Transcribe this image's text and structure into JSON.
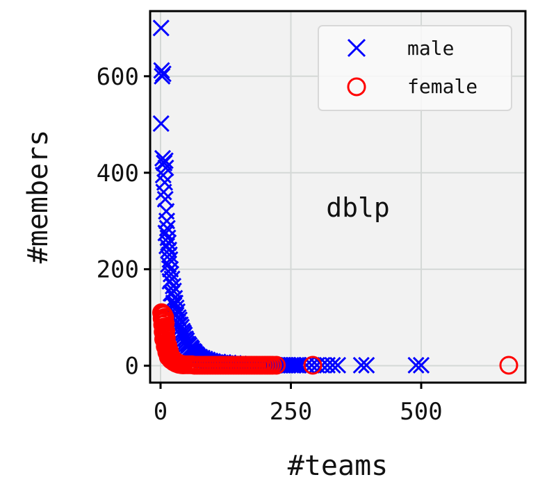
{
  "chart_data": {
    "type": "scatter",
    "xlabel": "#teams",
    "ylabel": "#members",
    "annotation": "dblp",
    "xlim": [
      -20,
      700
    ],
    "ylim": [
      -35,
      735
    ],
    "xticks": [
      0,
      250,
      500
    ],
    "xtick_labels": [
      "0",
      "250",
      "500"
    ],
    "yticks": [
      0,
      200,
      400,
      600
    ],
    "ytick_labels": [
      "0",
      "200",
      "400",
      "600"
    ],
    "grid": true,
    "legend": {
      "position": "top-right",
      "entries": [
        {
          "label": "male",
          "marker": "x",
          "color": "#0000ff"
        },
        {
          "label": "female",
          "marker": "o",
          "color": "#ff0000"
        }
      ]
    },
    "colors": {
      "male": "#0000ff",
      "female": "#ff0000",
      "plot_background": "#f2f2f2",
      "grid": "#d4d8d6"
    },
    "series": [
      {
        "name": "male",
        "marker": "x",
        "color": "#0000ff",
        "points": [
          [
            1,
            700
          ],
          [
            2,
            612
          ],
          [
            3,
            600
          ],
          [
            5,
            605
          ],
          [
            1,
            502
          ],
          [
            4,
            430
          ],
          [
            7,
            420
          ],
          [
            9,
            425
          ],
          [
            10,
            410
          ],
          [
            5,
            395
          ],
          [
            8,
            380
          ],
          [
            6,
            360
          ],
          [
            9,
            345
          ],
          [
            11,
            320
          ],
          [
            12,
            300
          ],
          [
            13,
            285
          ],
          [
            10,
            275
          ],
          [
            14,
            265
          ],
          [
            15,
            255
          ],
          [
            12,
            248
          ],
          [
            16,
            240
          ],
          [
            17,
            230
          ],
          [
            18,
            220
          ],
          [
            15,
            210
          ],
          [
            19,
            200
          ],
          [
            20,
            190
          ],
          [
            22,
            180
          ],
          [
            18,
            175
          ],
          [
            24,
            165
          ],
          [
            25,
            155
          ],
          [
            20,
            150
          ],
          [
            27,
            140
          ],
          [
            28,
            130
          ],
          [
            26,
            125
          ],
          [
            30,
            120
          ],
          [
            32,
            112
          ],
          [
            29,
            108
          ],
          [
            34,
            100
          ],
          [
            36,
            95
          ],
          [
            33,
            90
          ],
          [
            38,
            85
          ],
          [
            40,
            80
          ],
          [
            37,
            76
          ],
          [
            42,
            72
          ],
          [
            44,
            68
          ],
          [
            46,
            64
          ],
          [
            43,
            60
          ],
          [
            48,
            56
          ],
          [
            50,
            52
          ],
          [
            47,
            48
          ],
          [
            53,
            45
          ],
          [
            55,
            42
          ],
          [
            52,
            40
          ],
          [
            58,
            38
          ],
          [
            60,
            35
          ],
          [
            57,
            32
          ],
          [
            63,
            30
          ],
          [
            65,
            28
          ],
          [
            62,
            26
          ],
          [
            68,
            24
          ],
          [
            70,
            22
          ],
          [
            67,
            20
          ],
          [
            73,
            18
          ],
          [
            75,
            16
          ],
          [
            72,
            15
          ],
          [
            78,
            14
          ],
          [
            80,
            13
          ],
          [
            85,
            12
          ],
          [
            82,
            11
          ],
          [
            90,
            10
          ],
          [
            95,
            9
          ],
          [
            92,
            8
          ],
          [
            100,
            8
          ],
          [
            105,
            7
          ],
          [
            110,
            6
          ],
          [
            115,
            6
          ],
          [
            120,
            5
          ],
          [
            125,
            5
          ],
          [
            130,
            4
          ],
          [
            135,
            4
          ],
          [
            140,
            3
          ],
          [
            145,
            3
          ],
          [
            150,
            3
          ],
          [
            155,
            2
          ],
          [
            160,
            2
          ],
          [
            165,
            2
          ],
          [
            170,
            2
          ],
          [
            175,
            2
          ],
          [
            180,
            2
          ],
          [
            185,
            2
          ],
          [
            190,
            1
          ],
          [
            195,
            1
          ],
          [
            200,
            1
          ],
          [
            205,
            1
          ],
          [
            210,
            1
          ],
          [
            215,
            1
          ],
          [
            220,
            1
          ],
          [
            225,
            1
          ],
          [
            230,
            1
          ],
          [
            235,
            1
          ],
          [
            240,
            1
          ],
          [
            245,
            1
          ],
          [
            250,
            1
          ],
          [
            255,
            1
          ],
          [
            260,
            1
          ],
          [
            265,
            1
          ],
          [
            270,
            1
          ],
          [
            280,
            1
          ],
          [
            290,
            1
          ],
          [
            300,
            1
          ],
          [
            310,
            1
          ],
          [
            320,
            1
          ],
          [
            330,
            1
          ],
          [
            340,
            1
          ],
          [
            385,
            1
          ],
          [
            395,
            1
          ],
          [
            490,
            1
          ],
          [
            500,
            1
          ],
          [
            22,
            150
          ],
          [
            25,
            130
          ],
          [
            30,
            105
          ],
          [
            35,
            85
          ],
          [
            40,
            70
          ],
          [
            45,
            55
          ],
          [
            50,
            45
          ],
          [
            55,
            35
          ],
          [
            60,
            30
          ],
          [
            65,
            25
          ],
          [
            70,
            20
          ],
          [
            75,
            18
          ],
          [
            80,
            16
          ],
          [
            85,
            14
          ],
          [
            90,
            12
          ],
          [
            95,
            10
          ],
          [
            100,
            9
          ],
          [
            110,
            8
          ],
          [
            120,
            7
          ],
          [
            130,
            6
          ],
          [
            140,
            5
          ],
          [
            150,
            4
          ],
          [
            160,
            3
          ],
          [
            170,
            3
          ],
          [
            180,
            2
          ],
          [
            190,
            2
          ],
          [
            200,
            2
          ]
        ]
      },
      {
        "name": "female",
        "marker": "o",
        "color": "#ff0000",
        "points": [
          [
            2,
            110
          ],
          [
            4,
            108
          ],
          [
            6,
            105
          ],
          [
            8,
            100
          ],
          [
            3,
            98
          ],
          [
            5,
            95
          ],
          [
            7,
            92
          ],
          [
            9,
            88
          ],
          [
            4,
            85
          ],
          [
            6,
            80
          ],
          [
            8,
            76
          ],
          [
            10,
            72
          ],
          [
            5,
            70
          ],
          [
            7,
            66
          ],
          [
            9,
            62
          ],
          [
            11,
            58
          ],
          [
            6,
            55
          ],
          [
            8,
            52
          ],
          [
            10,
            48
          ],
          [
            12,
            45
          ],
          [
            14,
            42
          ],
          [
            9,
            40
          ],
          [
            11,
            37
          ],
          [
            13,
            34
          ],
          [
            15,
            32
          ],
          [
            17,
            30
          ],
          [
            12,
            28
          ],
          [
            14,
            26
          ],
          [
            16,
            24
          ],
          [
            18,
            22
          ],
          [
            20,
            20
          ],
          [
            15,
            18
          ],
          [
            17,
            17
          ],
          [
            19,
            16
          ],
          [
            21,
            15
          ],
          [
            23,
            14
          ],
          [
            25,
            13
          ],
          [
            20,
            12
          ],
          [
            22,
            11
          ],
          [
            24,
            10
          ],
          [
            26,
            10
          ],
          [
            28,
            9
          ],
          [
            30,
            8
          ],
          [
            25,
            8
          ],
          [
            27,
            7
          ],
          [
            29,
            7
          ],
          [
            31,
            6
          ],
          [
            33,
            6
          ],
          [
            35,
            5
          ],
          [
            30,
            5
          ],
          [
            32,
            5
          ],
          [
            34,
            4
          ],
          [
            36,
            4
          ],
          [
            38,
            4
          ],
          [
            40,
            3
          ],
          [
            35,
            3
          ],
          [
            37,
            3
          ],
          [
            39,
            3
          ],
          [
            41,
            2
          ],
          [
            43,
            2
          ],
          [
            45,
            2
          ],
          [
            50,
            2
          ],
          [
            55,
            2
          ],
          [
            60,
            2
          ],
          [
            65,
            1
          ],
          [
            70,
            1
          ],
          [
            75,
            1
          ],
          [
            80,
            1
          ],
          [
            85,
            1
          ],
          [
            90,
            1
          ],
          [
            95,
            1
          ],
          [
            100,
            1
          ],
          [
            105,
            1
          ],
          [
            110,
            1
          ],
          [
            115,
            1
          ],
          [
            120,
            1
          ],
          [
            125,
            1
          ],
          [
            130,
            1
          ],
          [
            135,
            1
          ],
          [
            140,
            1
          ],
          [
            145,
            1
          ],
          [
            150,
            1
          ],
          [
            155,
            1
          ],
          [
            160,
            1
          ],
          [
            165,
            1
          ],
          [
            170,
            1
          ],
          [
            175,
            1
          ],
          [
            180,
            1
          ],
          [
            185,
            1
          ],
          [
            190,
            1
          ],
          [
            195,
            1
          ],
          [
            200,
            1
          ],
          [
            205,
            1
          ],
          [
            210,
            1
          ],
          [
            215,
            1
          ],
          [
            222,
            1
          ],
          [
            292,
            1
          ],
          [
            668,
            1
          ]
        ]
      }
    ]
  }
}
